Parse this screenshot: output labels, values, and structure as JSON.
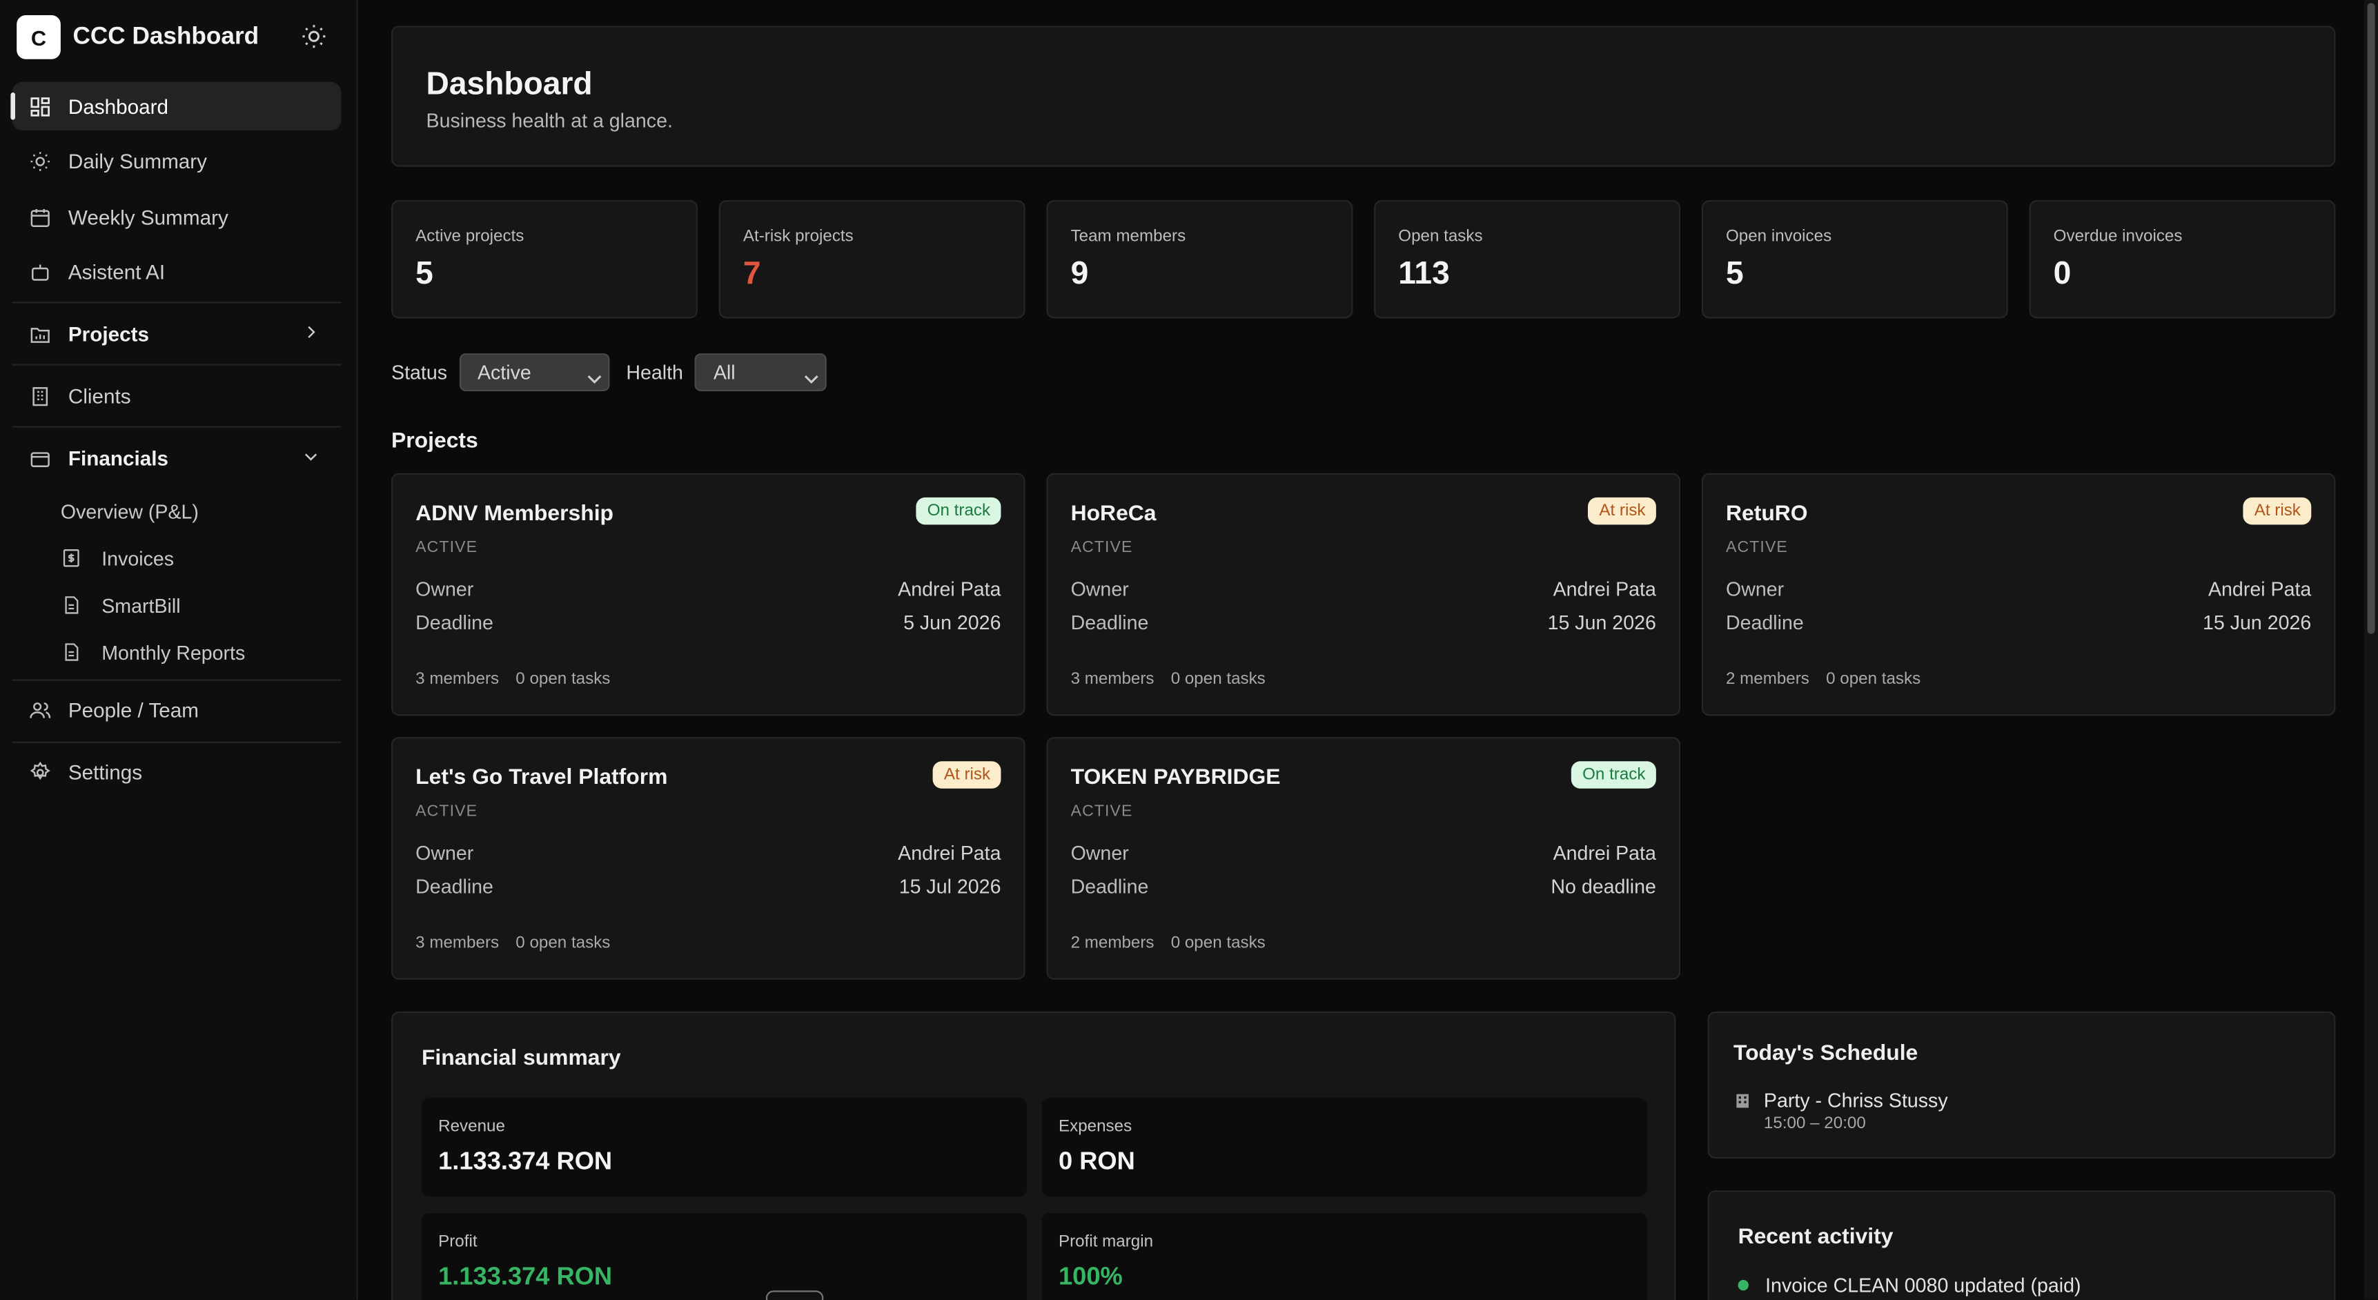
{
  "app": {
    "logo_letter": "C",
    "name": "CCC Dashboard"
  },
  "sidebar": {
    "items": [
      {
        "label": "Dashboard",
        "icon": "grid-icon"
      },
      {
        "label": "Daily Summary",
        "icon": "sun-icon"
      },
      {
        "label": "Weekly Summary",
        "icon": "calendar-icon"
      },
      {
        "label": "Asistent AI",
        "icon": "bot-icon"
      },
      {
        "label": "Projects",
        "icon": "folder-icon"
      },
      {
        "label": "Clients",
        "icon": "building-icon"
      },
      {
        "label": "Financials",
        "icon": "wallet-icon"
      },
      {
        "label": "People / Team",
        "icon": "users-icon"
      },
      {
        "label": "Settings",
        "icon": "gear-icon"
      }
    ],
    "financials_sub": [
      {
        "label": "Overview (P&L)"
      },
      {
        "label": "Invoices",
        "icon": "dollar-doc-icon"
      },
      {
        "label": "SmartBill",
        "icon": "doc-icon"
      },
      {
        "label": "Monthly Reports",
        "icon": "doc-icon"
      }
    ]
  },
  "header": {
    "title": "Dashboard",
    "subtitle": "Business health at a glance."
  },
  "kpis": [
    {
      "label": "Active projects",
      "value": "5"
    },
    {
      "label": "At-risk projects",
      "value": "7"
    },
    {
      "label": "Team members",
      "value": "9"
    },
    {
      "label": "Open tasks",
      "value": "113"
    },
    {
      "label": "Open invoices",
      "value": "5"
    },
    {
      "label": "Overdue invoices",
      "value": "0"
    }
  ],
  "filters": {
    "status_label": "Status",
    "status_value": "Active",
    "health_label": "Health",
    "health_value": "All"
  },
  "projects_title": "Projects",
  "projects": [
    {
      "name": "ADNV Membership",
      "status": "ACTIVE",
      "badge": "On track",
      "owner_label": "Owner",
      "owner": "Andrei Pata",
      "deadline_label": "Deadline",
      "deadline": "5 Jun 2026",
      "members": "3 members",
      "tasks": "0 open tasks"
    },
    {
      "name": "HoReCa",
      "status": "ACTIVE",
      "badge": "At risk",
      "owner_label": "Owner",
      "owner": "Andrei Pata",
      "deadline_label": "Deadline",
      "deadline": "15 Jun 2026",
      "members": "3 members",
      "tasks": "0 open tasks"
    },
    {
      "name": "RetuRO",
      "status": "ACTIVE",
      "badge": "At risk",
      "owner_label": "Owner",
      "owner": "Andrei Pata",
      "deadline_label": "Deadline",
      "deadline": "15 Jun 2026",
      "members": "2 members",
      "tasks": "0 open tasks"
    },
    {
      "name": "Let's Go Travel Platform",
      "status": "ACTIVE",
      "badge": "At risk",
      "owner_label": "Owner",
      "owner": "Andrei Pata",
      "deadline_label": "Deadline",
      "deadline": "15 Jul 2026",
      "members": "3 members",
      "tasks": "0 open tasks"
    },
    {
      "name": "TOKEN PAYBRIDGE",
      "status": "ACTIVE",
      "badge": "On track",
      "owner_label": "Owner",
      "owner": "Andrei Pata",
      "deadline_label": "Deadline",
      "deadline": "No deadline",
      "members": "2 members",
      "tasks": "0 open tasks"
    }
  ],
  "financial": {
    "title": "Financial summary",
    "revenue_label": "Revenue",
    "revenue": "1.133.374 RON",
    "expenses_label": "Expenses",
    "expenses": "0 RON",
    "profit_label": "Profit",
    "profit": "1.133.374 RON",
    "margin_label": "Profit margin",
    "margin": "100%"
  },
  "schedule": {
    "title": "Today's Schedule",
    "event": "Party - Chriss Stussy",
    "time": "15:00 – 20:00"
  },
  "activity": {
    "title": "Recent activity",
    "item": "Invoice CLEAN 0080 updated (paid)"
  },
  "colors": {
    "on_track_bg": "#d9f6e3",
    "on_track_fg": "#1c7a3e",
    "at_risk_bg": "#fbeccc",
    "at_risk_fg": "#b0561a",
    "danger": "#e2553f",
    "success": "#37b564"
  }
}
